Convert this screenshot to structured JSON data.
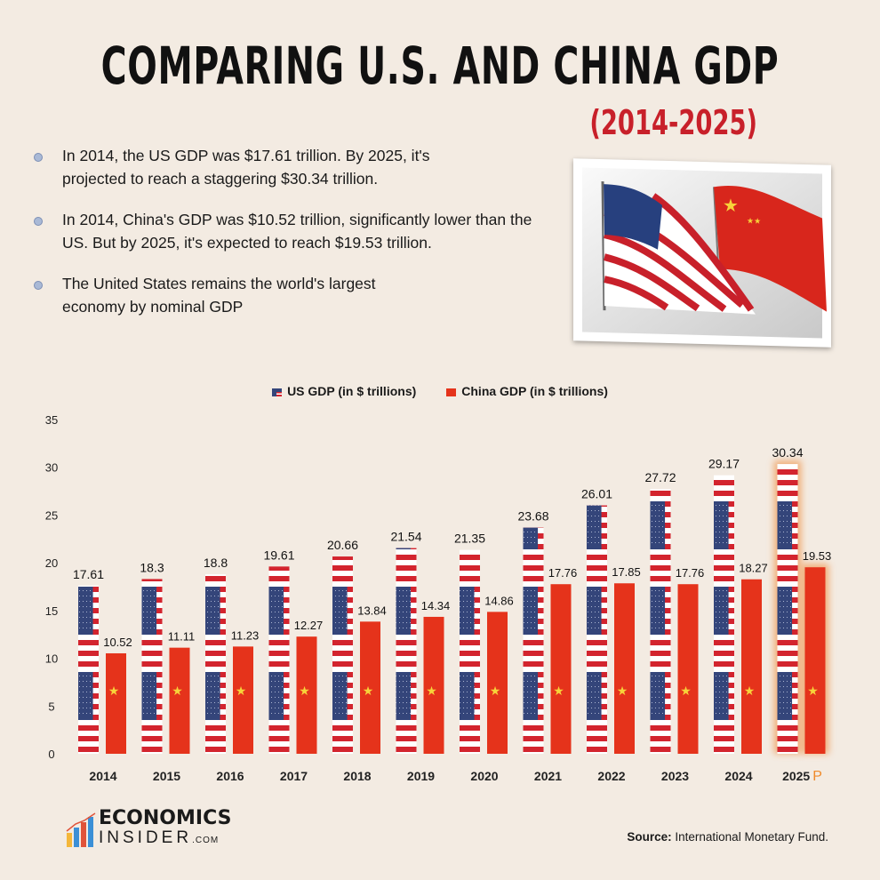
{
  "header": {
    "title": "COMPARING U.S. AND CHINA GDP",
    "subtitle": "(2014-2025)"
  },
  "bullets": [
    "In 2014, the US GDP was $17.61 trillion.  By 2025, it's projected to reach a staggering $30.34 trillion.",
    "In 2014, China's GDP was $10.52 trillion, significantly lower than the US. But by 2025, it's expected to reach $19.53 trillion.",
    "The United States remains the world's largest economy by nominal GDP"
  ],
  "colors": {
    "us_red": "#d3242e",
    "us_blue": "#34457a",
    "china_red": "#e5331b",
    "china_star": "#f7d33a",
    "highlight": "#f0a060",
    "background": "#f3ebe2"
  },
  "chart_data": {
    "type": "bar",
    "categories": [
      "2014",
      "2015",
      "2016",
      "2017",
      "2018",
      "2019",
      "2020",
      "2021",
      "2022",
      "2023",
      "2024",
      "2025"
    ],
    "category_suffix": {
      "2025": "P"
    },
    "series": [
      {
        "name": "US GDP (in $ trillions)",
        "values": [
          17.61,
          18.3,
          18.8,
          19.61,
          20.66,
          21.54,
          21.35,
          23.68,
          26.01,
          27.72,
          29.17,
          30.34
        ]
      },
      {
        "name": "China GDP (in $ trillions)",
        "values": [
          10.52,
          11.11,
          11.23,
          12.27,
          13.84,
          14.34,
          14.86,
          17.76,
          17.85,
          17.76,
          18.27,
          19.53
        ]
      }
    ],
    "ylim": [
      0,
      35
    ],
    "yticks": [
      0,
      5,
      10,
      15,
      20,
      25,
      30,
      35
    ],
    "grid": false,
    "legend": "top-center",
    "highlighted_category": "2025"
  },
  "footer": {
    "logo_line1": "ECONOMICS",
    "logo_line2": "INSIDER",
    "logo_suffix": ".COM",
    "source_label": "Source:",
    "source_text": " International Monetary Fund."
  }
}
